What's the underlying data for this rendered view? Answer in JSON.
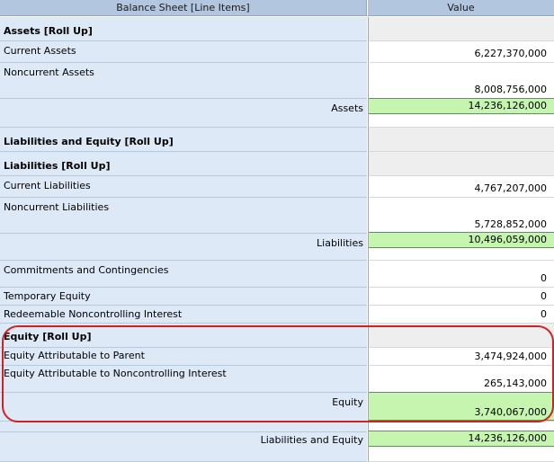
{
  "header": {
    "label_column": "Balance Sheet [Line Items]",
    "value_column": "Value"
  },
  "rows": [
    {
      "label": "Assets [Roll Up]",
      "value": ""
    },
    {
      "label": "Current Assets",
      "value": "6,227,370,000"
    },
    {
      "label": "Noncurrent Assets",
      "value": "8,008,756,000"
    },
    {
      "label": "Assets",
      "value": "14,236,126,000"
    },
    {
      "label": "Liabilities and Equity [Roll Up]",
      "value": ""
    },
    {
      "label": "Liabilities [Roll Up]",
      "value": ""
    },
    {
      "label": "Current Liabilities",
      "value": "4,767,207,000"
    },
    {
      "label": "Noncurrent Liabilities",
      "value": "5,728,852,000"
    },
    {
      "label": "Liabilities",
      "value": "10,496,059,000"
    },
    {
      "label": "Commitments and Contingencies",
      "value": "0"
    },
    {
      "label": "Temporary Equity",
      "value": "0"
    },
    {
      "label": "Redeemable Noncontrolling Interest",
      "value": "0"
    },
    {
      "label": "Equity [Roll Up]",
      "value": ""
    },
    {
      "label": "Equity Attributable to Parent",
      "value": "3,474,924,000"
    },
    {
      "label": "Equity Attributable to Noncontrolling Interest",
      "value": "265,143,000"
    },
    {
      "label": "Equity",
      "value": "3,740,067,000"
    },
    {
      "label": "Liabilities and Equity",
      "value": "14,236,126,000"
    }
  ],
  "colors": {
    "header": "#b3c6e0",
    "label_bg": "#dde9f6",
    "total_bg": "#c5f5ae",
    "highlight": "#d42020"
  }
}
